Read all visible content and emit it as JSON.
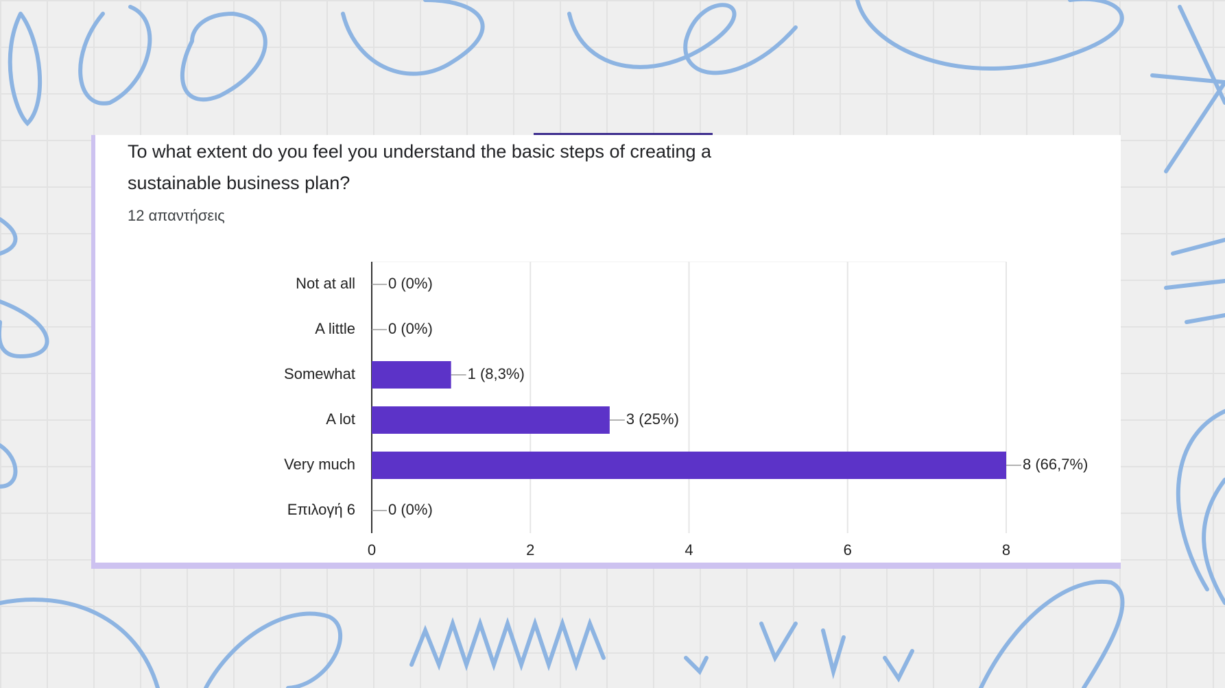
{
  "chart_data": {
    "type": "bar",
    "orientation": "horizontal",
    "title": "To what extent do you feel you understand the basic steps of creating a sustainable business plan?",
    "subtitle": "12 απαντήσεις",
    "categories": [
      "Not at all",
      "A little",
      "Somewhat",
      "A lot",
      "Very much",
      "Επιλογή 6"
    ],
    "values": [
      0,
      0,
      1,
      3,
      8,
      0
    ],
    "value_labels": [
      "0 (0%)",
      "0 (0%)",
      "1 (8,3%)",
      "3 (25%)",
      "8 (66,7%)",
      "0 (0%)"
    ],
    "color": "#5c33c8",
    "xlim": [
      0,
      8
    ],
    "xticks": [
      0,
      2,
      4,
      6,
      8
    ],
    "grid": true
  }
}
